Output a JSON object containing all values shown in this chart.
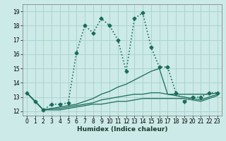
{
  "xlabel": "Humidex (Indice chaleur)",
  "bg_color": "#cceae7",
  "grid_color": "#aad4d0",
  "line_color": "#1a6b5a",
  "xlim": [
    -0.5,
    23.5
  ],
  "ylim": [
    11.7,
    19.5
  ],
  "xticks": [
    0,
    1,
    2,
    3,
    4,
    5,
    6,
    7,
    8,
    9,
    10,
    11,
    12,
    13,
    14,
    15,
    16,
    17,
    18,
    19,
    20,
    21,
    22,
    23
  ],
  "yticks": [
    12,
    13,
    14,
    15,
    16,
    17,
    18,
    19
  ],
  "series": [
    {
      "x": [
        0,
        1,
        2,
        3,
        4,
        5,
        6,
        7,
        8,
        9,
        10,
        11,
        12,
        13,
        14,
        15,
        16,
        17,
        18,
        19,
        20,
        21,
        22,
        23
      ],
      "y": [
        13.3,
        12.7,
        12.1,
        12.5,
        12.5,
        12.6,
        16.1,
        18.0,
        17.5,
        18.5,
        18.0,
        17.0,
        14.8,
        18.5,
        18.9,
        16.5,
        15.1,
        15.1,
        13.3,
        12.7,
        13.0,
        13.0,
        13.3,
        13.3
      ],
      "marker": "D",
      "linestyle": ":",
      "linewidth": 1.2,
      "markersize": 2.5,
      "has_marker": true
    },
    {
      "x": [
        0,
        1,
        2,
        3,
        4,
        5,
        6,
        7,
        8,
        9,
        10,
        11,
        12,
        13,
        14,
        15,
        16,
        17,
        18,
        19,
        20,
        21,
        22,
        23
      ],
      "y": [
        13.3,
        12.7,
        12.1,
        12.2,
        12.3,
        12.4,
        12.5,
        12.7,
        12.9,
        13.2,
        13.4,
        13.7,
        13.9,
        14.2,
        14.5,
        14.8,
        15.0,
        13.2,
        13.2,
        13.2,
        13.2,
        13.2,
        13.2,
        13.3
      ],
      "marker": null,
      "linestyle": "-",
      "linewidth": 0.9,
      "markersize": 0,
      "has_marker": false
    },
    {
      "x": [
        0,
        1,
        2,
        3,
        4,
        5,
        6,
        7,
        8,
        9,
        10,
        11,
        12,
        13,
        14,
        15,
        16,
        17,
        18,
        19,
        20,
        21,
        22,
        23
      ],
      "y": [
        13.3,
        12.7,
        12.1,
        12.2,
        12.2,
        12.3,
        12.4,
        12.5,
        12.6,
        12.8,
        12.9,
        13.0,
        13.1,
        13.2,
        13.2,
        13.3,
        13.3,
        13.2,
        13.1,
        13.0,
        12.9,
        12.8,
        13.0,
        13.2
      ],
      "marker": null,
      "linestyle": "-",
      "linewidth": 0.9,
      "markersize": 0,
      "has_marker": false
    },
    {
      "x": [
        0,
        1,
        2,
        3,
        4,
        5,
        6,
        7,
        8,
        9,
        10,
        11,
        12,
        13,
        14,
        15,
        16,
        17,
        18,
        19,
        20,
        21,
        22,
        23
      ],
      "y": [
        13.3,
        12.7,
        12.1,
        12.1,
        12.1,
        12.2,
        12.3,
        12.4,
        12.5,
        12.5,
        12.6,
        12.7,
        12.7,
        12.8,
        12.9,
        12.9,
        12.9,
        12.9,
        12.9,
        12.9,
        12.8,
        12.7,
        12.9,
        13.1
      ],
      "marker": null,
      "linestyle": "-",
      "linewidth": 0.9,
      "markersize": 0,
      "has_marker": false
    }
  ]
}
